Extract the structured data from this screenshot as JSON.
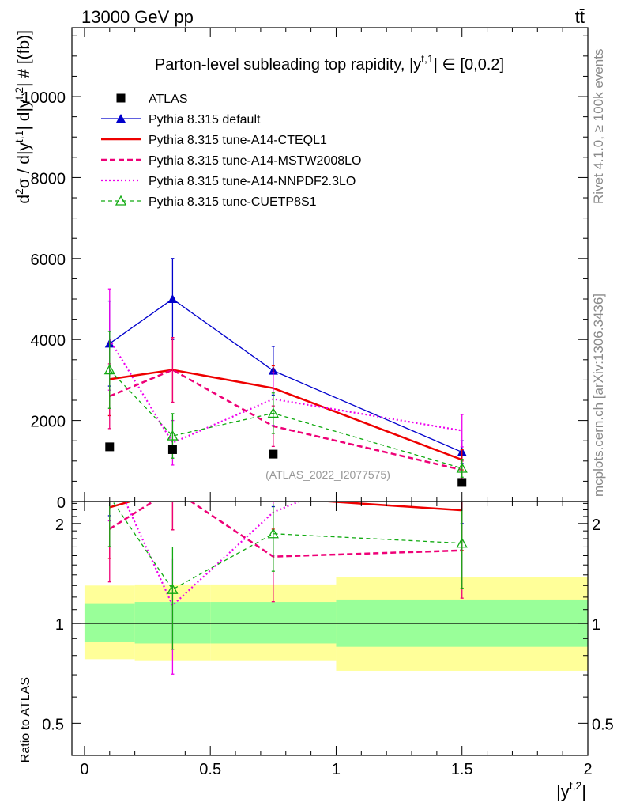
{
  "header": {
    "left": "13000 GeV pp",
    "right": "tt̄"
  },
  "side_text": {
    "rivet": "Rivet 4.1.0, ≥ 100k events",
    "mcplots": "mcplots.cern.ch [arXiv:1306.3436]"
  },
  "chart_data": {
    "type": "line",
    "title": "Parton-level subleading top rapidity, |y^{t,1}| ∈ [0,0.2]",
    "title_parts": [
      "Parton-level subleading top rapidity, |y",
      "t,1",
      "| ∈ [0,0.2]"
    ],
    "ylabel_parts": [
      "d",
      "2",
      "σ / d|y",
      "t,1",
      "| d|y",
      "t,2",
      "| # [(fb)]"
    ],
    "ratio_ylabel": "Ratio to ATLAS",
    "xlabel_parts": [
      "|y",
      "t,2",
      "|"
    ],
    "watermark": "(ATLAS_2022_I2077575)",
    "xlim": [
      -0.05,
      2.0
    ],
    "ylim": [
      0,
      11700
    ],
    "ratio_ylim": [
      0.4,
      2.33
    ],
    "x_ticks": [
      0,
      0.5,
      1,
      1.5,
      2
    ],
    "x_tick_labels": [
      "0",
      "0.5",
      "1",
      "1.5",
      "2"
    ],
    "y_ticks": [
      0,
      2000,
      4000,
      6000,
      8000,
      10000
    ],
    "y_tick_labels": [
      "0",
      "2000",
      "4000",
      "6000",
      "8000",
      "10000"
    ],
    "ratio_ticks": [
      0.5,
      1,
      2
    ],
    "ratio_tick_labels": [
      "0.5",
      "1",
      "2"
    ],
    "x": [
      0.1,
      0.35,
      0.75,
      1.5
    ],
    "bins": [
      [
        0.0,
        0.2
      ],
      [
        0.2,
        0.5
      ],
      [
        0.5,
        1.0
      ],
      [
        1.0,
        2.0
      ]
    ],
    "data": {
      "name": "ATLAS",
      "values": [
        1350,
        1280,
        1170,
        470
      ],
      "band_inner": [
        [
          0.88,
          1.15
        ],
        [
          0.87,
          1.16
        ],
        [
          0.87,
          1.16
        ],
        [
          0.85,
          1.18
        ]
      ],
      "band_outer": [
        [
          0.78,
          1.3
        ],
        [
          0.77,
          1.31
        ],
        [
          0.77,
          1.31
        ],
        [
          0.72,
          1.38
        ]
      ]
    },
    "series": [
      {
        "name": "Pythia 8.315 default",
        "color": "#0000cc",
        "style": "solid",
        "width": 1.3,
        "marker": "triangle-filled",
        "values": [
          3900,
          5000,
          3230,
          1220
        ],
        "err": [
          1050,
          1000,
          600,
          280
        ]
      },
      {
        "name": "Pythia 8.315 tune-A14-CTEQL1",
        "color": "#ee0000",
        "style": "solid",
        "width": 2.5,
        "marker": "none",
        "values": [
          3020,
          3250,
          2800,
          1030
        ],
        "err": [
          900,
          800,
          550,
          250
        ]
      },
      {
        "name": "Pythia 8.315 tune-A14-MSTW2008LO",
        "color": "#ee0077",
        "style": "dashed",
        "width": 2.5,
        "marker": "none",
        "values": [
          2600,
          3250,
          1860,
          780
        ],
        "err": [
          800,
          800,
          500,
          220
        ]
      },
      {
        "name": "Pythia 8.315 tune-A14-NNPDF2.3LO",
        "color": "#ee00ee",
        "style": "dotted",
        "width": 2.2,
        "marker": "none",
        "values": [
          4000,
          1450,
          2530,
          1750
        ],
        "err": [
          1250,
          550,
          650,
          400
        ]
      },
      {
        "name": "Pythia 8.315 tune-CUETP8S1",
        "color": "#11aa11",
        "style": "dashed-thin",
        "width": 1.3,
        "marker": "triangle-open",
        "values": [
          3250,
          1620,
          2180,
          820
        ],
        "err": [
          950,
          550,
          500,
          220
        ]
      }
    ]
  }
}
